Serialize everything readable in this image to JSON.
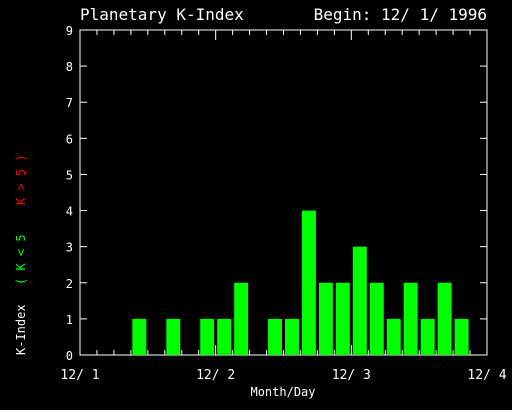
{
  "header": {
    "title": "Planetary K-Index",
    "begin": "Begin: 12/ 1/ 1996"
  },
  "colors": {
    "background": "#000000",
    "foreground": "#ffffff",
    "bar_low": "#00ff00",
    "bar_high": "#ff0000"
  },
  "chart_data": {
    "type": "bar",
    "title": "Planetary K-Index",
    "subtitle": "Begin: 12/ 1/ 1996",
    "xlabel": "Month/Day",
    "ylabel": "K-Index",
    "ylabel_legend": [
      {
        "text": "( K < 5",
        "color": "#00ff00"
      },
      {
        "text": "K > 5 )",
        "color": "#ff0000"
      }
    ],
    "ylim": [
      0,
      9
    ],
    "yticks": [
      "0",
      "1",
      "2",
      "3",
      "4",
      "5",
      "6",
      "7",
      "8",
      "9"
    ],
    "xlim": [
      0,
      24
    ],
    "xticks": [
      {
        "label": "12/ 1",
        "at": 0
      },
      {
        "label": "12/ 2",
        "at": 8
      },
      {
        "label": "12/ 3",
        "at": 16
      },
      {
        "label": "12/ 4",
        "at": 24
      }
    ],
    "interval_hours": 3,
    "values": [
      0,
      0,
      0,
      1,
      0,
      1,
      0,
      1,
      1,
      2,
      0,
      1,
      1,
      4,
      2,
      2,
      3,
      2,
      1,
      2,
      1,
      2,
      1,
      0
    ],
    "threshold": 5,
    "grid": false
  }
}
